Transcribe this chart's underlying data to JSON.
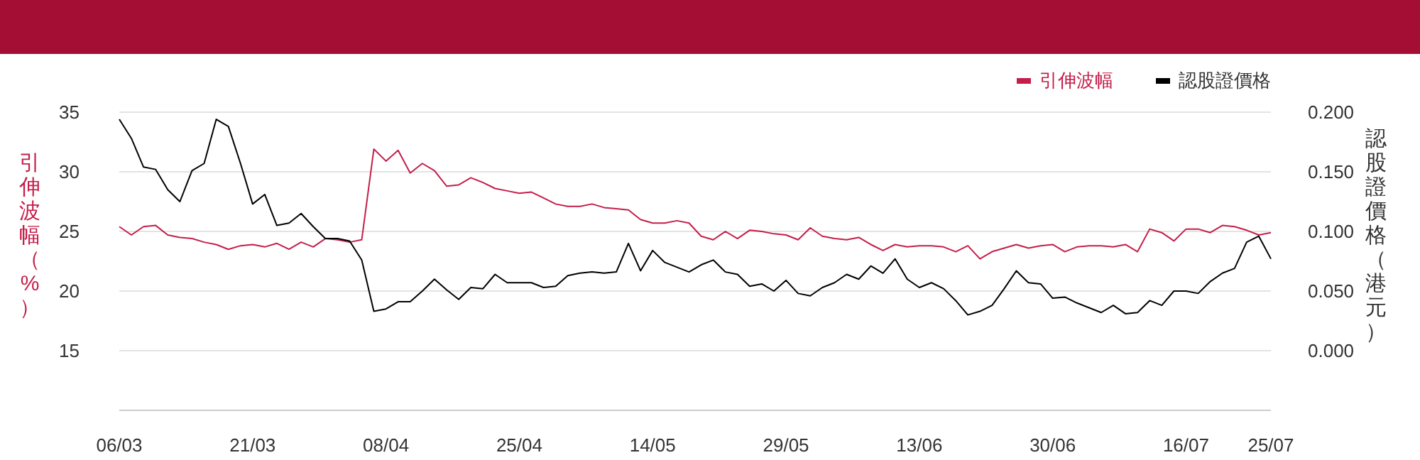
{
  "chart_data": {
    "type": "line",
    "categories": [
      "06/03",
      null,
      null,
      null,
      null,
      null,
      null,
      null,
      null,
      null,
      null,
      "21/03",
      null,
      null,
      null,
      null,
      null,
      null,
      null,
      null,
      null,
      null,
      "08/04",
      null,
      null,
      null,
      null,
      null,
      null,
      null,
      null,
      null,
      null,
      "25/04",
      null,
      null,
      null,
      null,
      null,
      null,
      null,
      null,
      null,
      null,
      "14/05",
      null,
      null,
      null,
      null,
      null,
      null,
      null,
      null,
      null,
      null,
      "29/05",
      null,
      null,
      null,
      null,
      null,
      null,
      null,
      null,
      null,
      null,
      "13/06",
      null,
      null,
      null,
      null,
      null,
      null,
      null,
      null,
      null,
      null,
      "30/06",
      null,
      null,
      null,
      null,
      null,
      null,
      null,
      null,
      null,
      null,
      "16/07",
      null,
      null,
      null,
      null,
      null,
      null,
      "25/07"
    ],
    "series": [
      {
        "name": "引伸波幅",
        "color": "#c41e4a",
        "values": [
          25.4,
          24.7,
          25.4,
          25.5,
          24.7,
          24.5,
          24.4,
          24.1,
          23.9,
          23.5,
          23.8,
          23.9,
          23.7,
          24.0,
          23.5,
          24.1,
          23.7,
          24.4,
          24.3,
          24.1,
          24.3,
          31.9,
          30.9,
          31.8,
          29.9,
          30.7,
          30.1,
          28.8,
          28.9,
          29.5,
          29.1,
          28.6,
          28.4,
          28.2,
          28.3,
          27.8,
          27.3,
          27.1,
          27.1,
          27.3,
          27.0,
          26.9,
          26.8,
          26.0,
          25.7,
          25.7,
          25.9,
          25.7,
          24.6,
          24.3,
          25.0,
          24.4,
          25.1,
          25.0,
          24.8,
          24.7,
          24.3,
          25.3,
          24.6,
          24.4,
          24.3,
          24.5,
          23.9,
          23.4,
          23.9,
          23.7,
          23.8,
          23.8,
          23.7,
          23.3,
          23.8,
          22.7,
          23.3,
          23.6,
          23.9,
          23.6,
          23.8,
          23.9,
          23.3,
          23.7,
          23.8,
          23.8,
          23.7,
          23.9,
          23.3,
          25.2,
          24.9,
          24.2,
          25.2,
          25.2,
          24.9,
          25.5,
          25.4,
          25.1,
          24.7,
          24.9
        ]
      },
      {
        "name": "認股證價格",
        "color": "#000000",
        "axis": "y2",
        "values": [
          0.194,
          0.178,
          0.154,
          0.152,
          0.135,
          0.125,
          0.151,
          0.157,
          0.194,
          0.188,
          0.157,
          0.123,
          0.131,
          0.105,
          0.107,
          0.115,
          0.104,
          0.094,
          0.094,
          0.092,
          0.076,
          0.033,
          0.035,
          0.041,
          0.041,
          0.05,
          0.06,
          0.051,
          0.043,
          0.053,
          0.052,
          0.064,
          0.057,
          0.057,
          0.057,
          0.053,
          0.054,
          0.063,
          0.065,
          0.066,
          0.065,
          0.066,
          0.09,
          0.067,
          0.084,
          0.074,
          0.07,
          0.066,
          0.072,
          0.076,
          0.066,
          0.064,
          0.054,
          0.056,
          0.05,
          0.059,
          0.048,
          0.046,
          0.053,
          0.057,
          0.064,
          0.06,
          0.071,
          0.065,
          0.077,
          0.06,
          0.053,
          0.057,
          0.052,
          0.042,
          0.03,
          0.033,
          0.038,
          0.052,
          0.067,
          0.057,
          0.056,
          0.044,
          0.045,
          0.04,
          0.036,
          0.032,
          0.038,
          0.031,
          0.032,
          0.042,
          0.038,
          0.05,
          0.05,
          0.048,
          0.058,
          0.065,
          0.069,
          0.091,
          0.096,
          0.077
        ]
      }
    ],
    "ylabel": "引伸波幅（%）",
    "y2label": "認股證價格（港元）",
    "ylim": [
      10,
      35
    ],
    "yticks": [
      15,
      20,
      25,
      30,
      35
    ],
    "y2lim": [
      -0.05,
      0.2
    ],
    "y2ticks": [
      {
        "value": 0,
        "label": "0.000"
      },
      {
        "value": 0.05,
        "label": "0.050"
      },
      {
        "value": 0.1,
        "label": "0.100"
      },
      {
        "value": 0.15,
        "label": "0.150"
      },
      {
        "value": 0.2,
        "label": "0.200"
      }
    ],
    "grid": "y",
    "legend": "top right",
    "marker": "none",
    "line_style": "solid"
  }
}
